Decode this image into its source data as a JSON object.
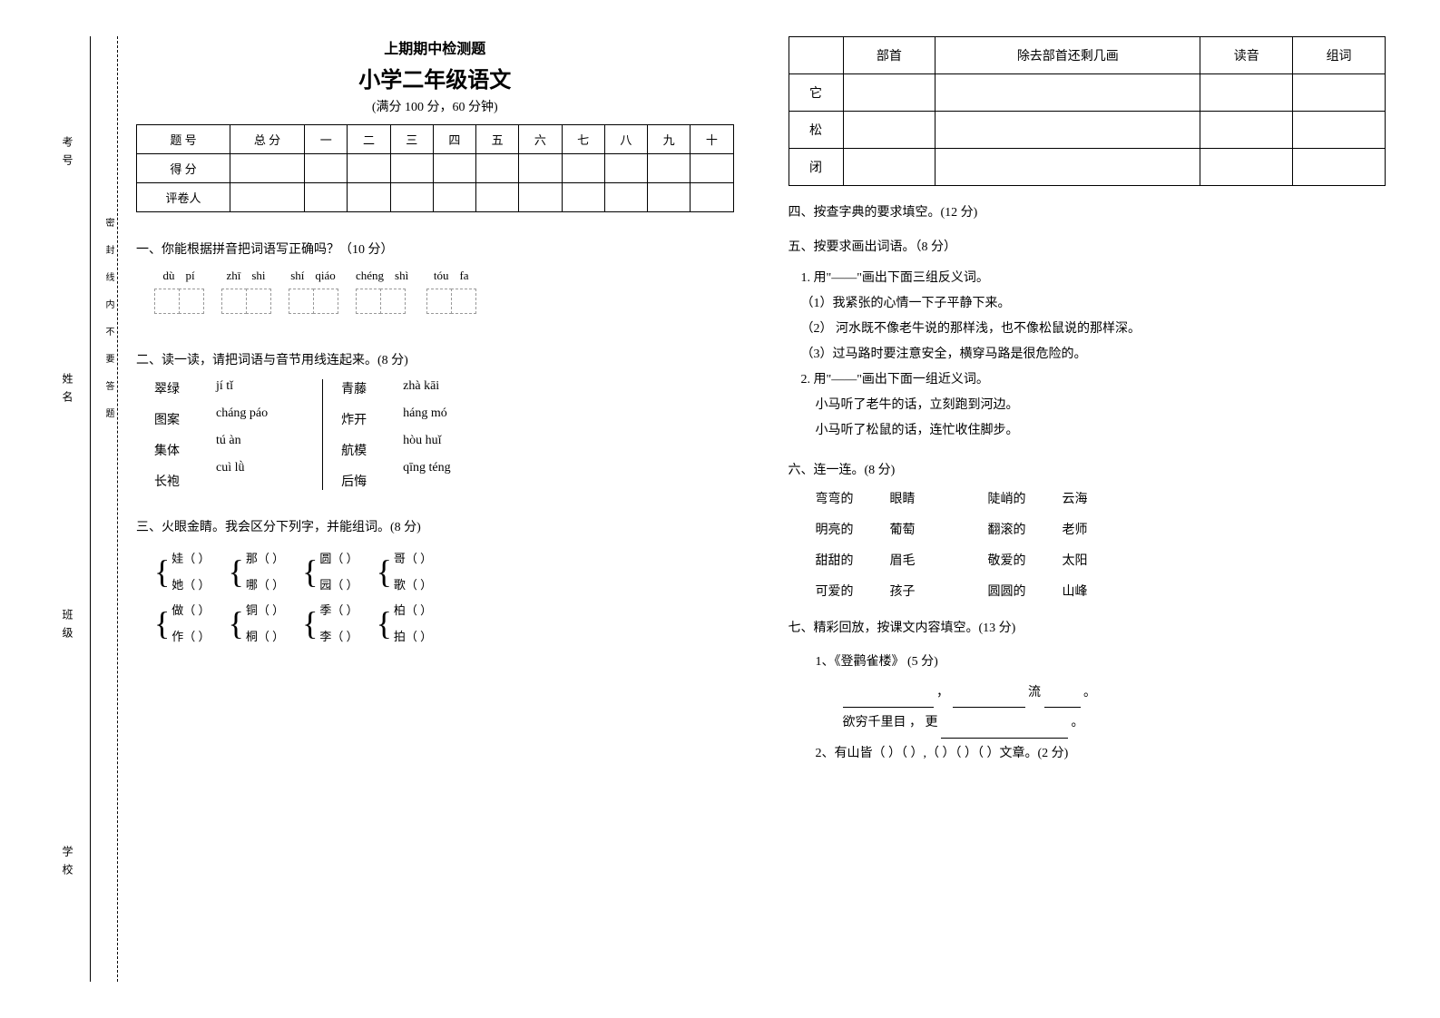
{
  "sidebar": {
    "labels": [
      "考号",
      "姓名",
      "班级",
      "学校"
    ]
  },
  "cutline_text": "密封线内不要答题",
  "header": {
    "subtitle": "上期期中检测题",
    "title": "小学二年级语文",
    "meta": "(满分 100 分，60 分钟)"
  },
  "score_table": {
    "headers": [
      "题 号",
      "总 分",
      "一",
      "二",
      "三",
      "四",
      "五",
      "六",
      "七",
      "八",
      "九",
      "十"
    ],
    "rows": [
      "得 分",
      "评卷人"
    ]
  },
  "s1": {
    "title": "一、你能根据拼音把词语写正确吗？（10 分）",
    "groups": [
      {
        "pinyin": [
          "dù",
          "pí"
        ]
      },
      {
        "pinyin": [
          "zhī",
          "shi"
        ]
      },
      {
        "pinyin": [
          "shí",
          "qiáo"
        ]
      },
      {
        "pinyin": [
          "chéng",
          "shì"
        ]
      },
      {
        "pinyin": [
          "tóu",
          "fa"
        ]
      }
    ]
  },
  "s2": {
    "title": "二、读一读，请把词语与音节用线连起来。(8 分)",
    "left_words": [
      "翠绿",
      "图案",
      "集体",
      "长袍"
    ],
    "left_pinyin": [
      "jí tǐ",
      "cháng páo",
      "tú àn",
      "cuì lǜ"
    ],
    "right_words": [
      "青藤",
      "炸开",
      "航模",
      "后悔"
    ],
    "right_pinyin": [
      "zhà kāi",
      "háng mó",
      "hòu huǐ",
      "qīng téng"
    ]
  },
  "s3": {
    "title": "三、火眼金睛。我会区分下列字，并能组词。(8 分)",
    "pairs": [
      [
        [
          "娃",
          "她"
        ],
        [
          "那",
          "哪"
        ],
        [
          "圆",
          "园"
        ],
        [
          "哥",
          "歌"
        ]
      ],
      [
        [
          "做",
          "作"
        ],
        [
          "铜",
          "桐"
        ],
        [
          "季",
          "李"
        ],
        [
          "柏",
          "拍"
        ]
      ]
    ]
  },
  "lookup_table": {
    "headers": [
      "",
      "部首",
      "除去部首还剩几画",
      "读音",
      "组词"
    ],
    "rows": [
      "它",
      "松",
      "闭"
    ]
  },
  "s4": {
    "title": "四、按查字典的要求填空。(12 分)"
  },
  "s5": {
    "title": "五、按要求画出词语。（8 分）",
    "sub1": "1. 用\"——\"画出下面三组反义词。",
    "lines1": [
      "（1）我紧张的心情一下子平静下来。",
      "（2） 河水既不像老牛说的那样浅，也不像松鼠说的那样深。",
      "（3）过马路时要注意安全，横穿马路是很危险的。"
    ],
    "sub2": "2. 用\"——\"画出下面一组近义词。",
    "lines2": [
      "小马听了老牛的话，立刻跑到河边。",
      "小马听了松鼠的话，连忙收住脚步。"
    ]
  },
  "s6": {
    "title": "六、连一连。(8 分)",
    "left_a": [
      "弯弯的",
      "明亮的",
      "甜甜的",
      "可爱的"
    ],
    "left_b": [
      "眼睛",
      "葡萄",
      "眉毛",
      "孩子"
    ],
    "right_a": [
      "陡峭的",
      "翻滚的",
      "敬爱的",
      "圆圆的"
    ],
    "right_b": [
      "云海",
      "老师",
      "太阳",
      "山峰"
    ]
  },
  "s7": {
    "title": "七、精彩回放，按课文内容填空。(13 分)",
    "q1_label": "1、《登鹳雀楼》    (5 分)",
    "q1_line1a": "，",
    "q1_line1b": "流",
    "q1_line1c": "。",
    "q1_line2a": "欲穷千里目 ， 更",
    "q1_line2b": "。",
    "q2": "2、有山皆（   ）（    ）,（    ）（    ）（    ）文章。(2 分)"
  }
}
